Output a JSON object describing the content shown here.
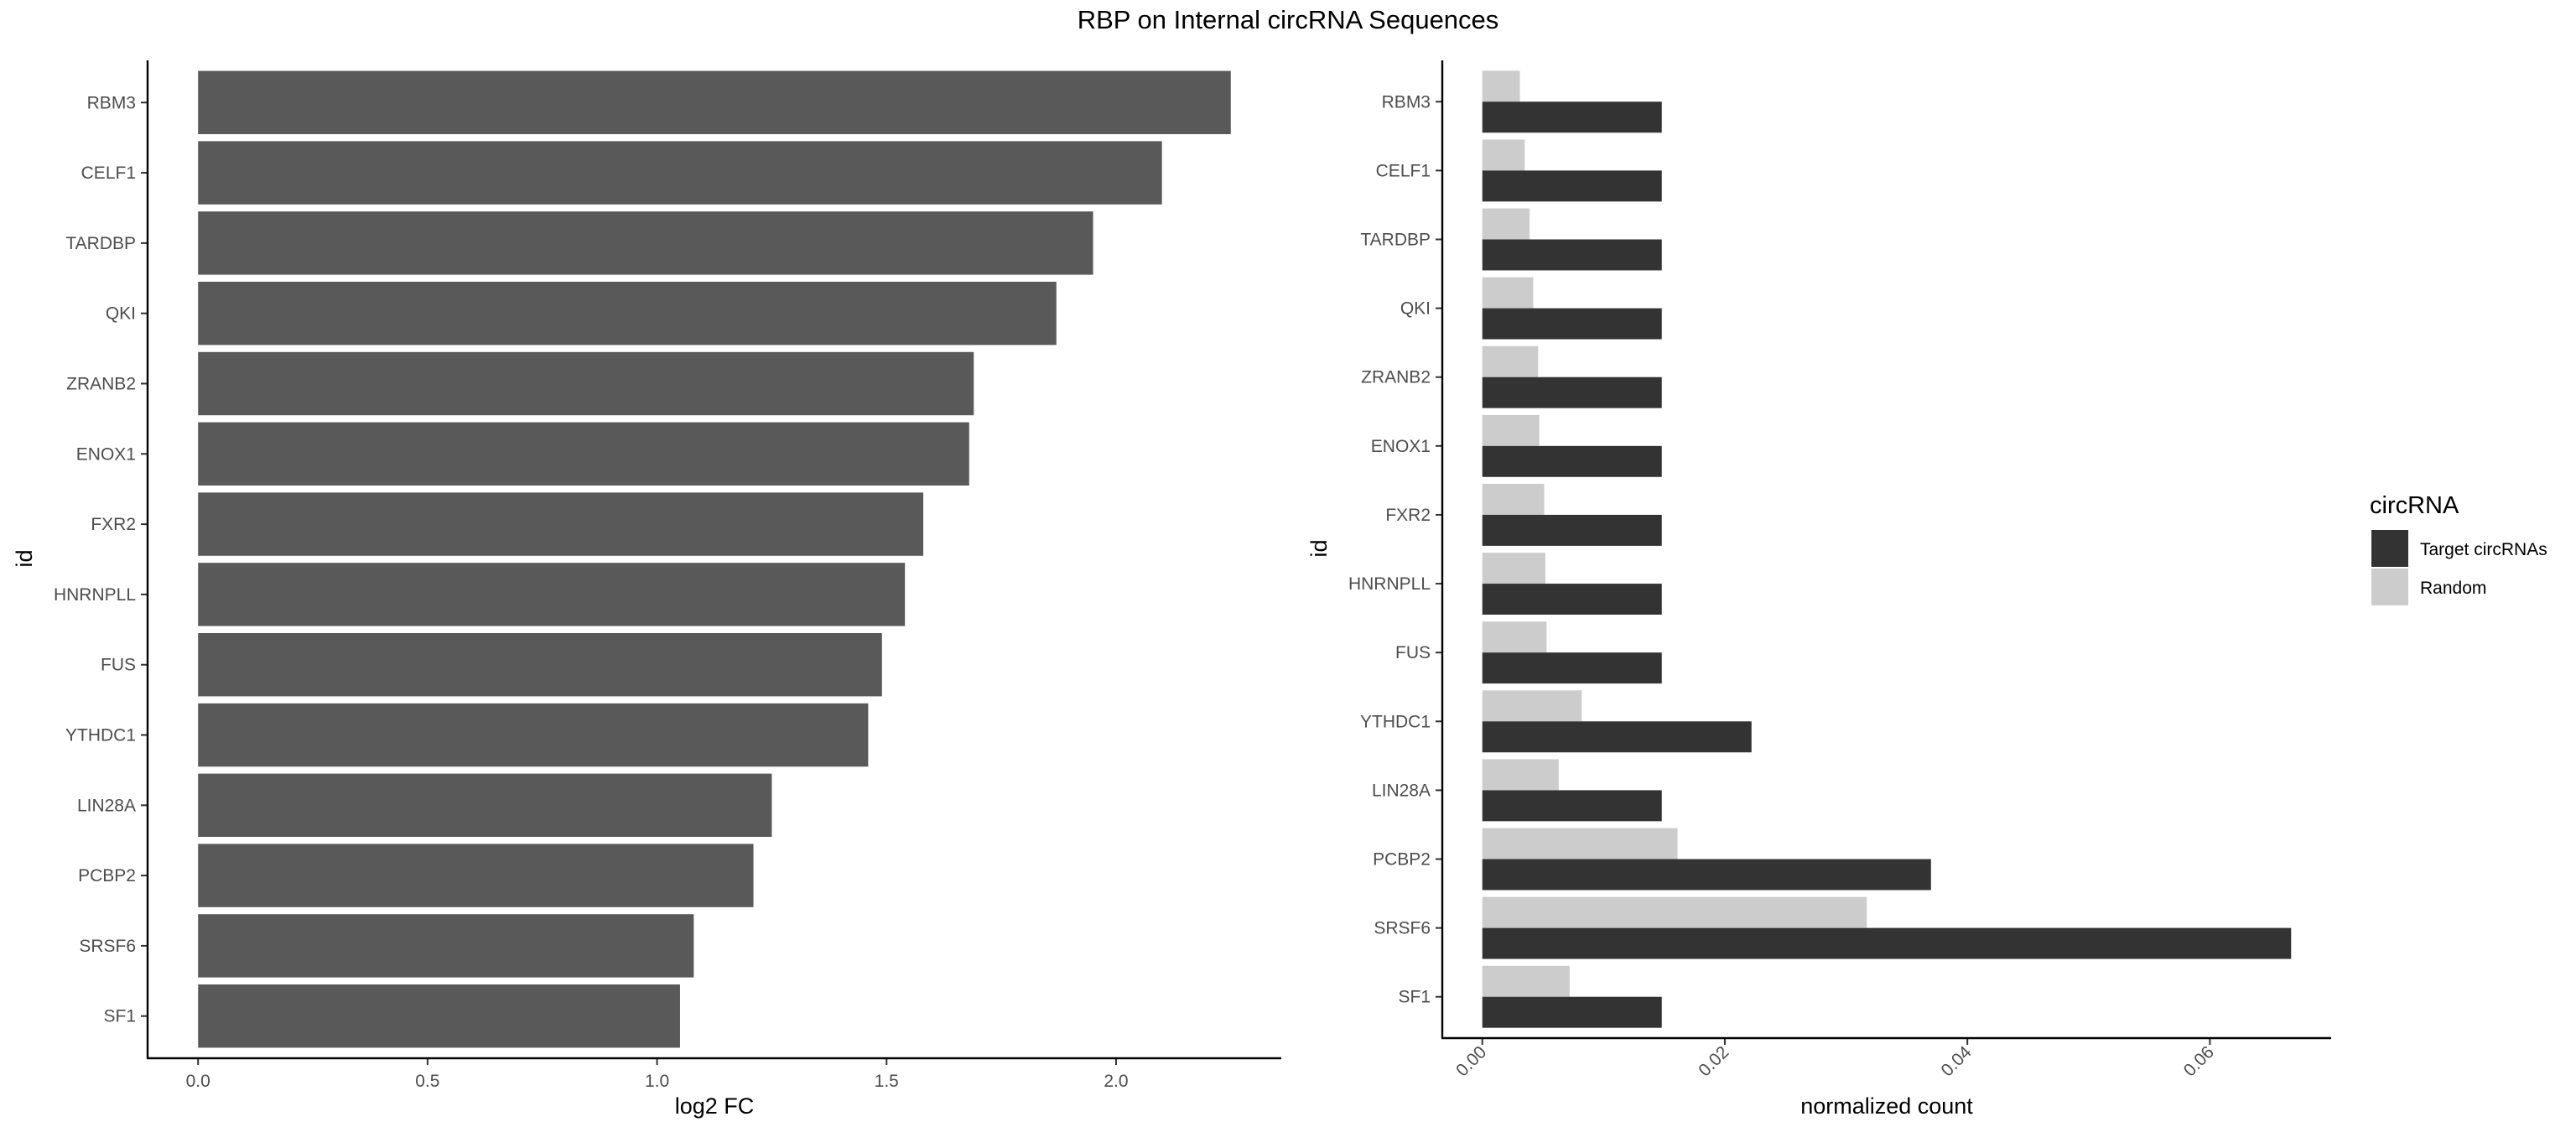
{
  "title": "RBP on Internal circRNA Sequences",
  "colors": {
    "bar_left": "#595959",
    "target": "#333333",
    "random": "#cccccc",
    "axis": "#000000",
    "tick_text": "#4d4d4d"
  },
  "chart_data": [
    {
      "type": "bar",
      "orientation": "horizontal",
      "categories": [
        "RBM3",
        "CELF1",
        "TARDBP",
        "QKI",
        "ZRANB2",
        "ENOX1",
        "FXR2",
        "HNRNPLL",
        "FUS",
        "YTHDC1",
        "LIN28A",
        "PCBP2",
        "SRSF6",
        "SF1"
      ],
      "values": [
        2.25,
        2.1,
        1.95,
        1.87,
        1.69,
        1.68,
        1.58,
        1.54,
        1.49,
        1.46,
        1.25,
        1.21,
        1.08,
        1.05
      ],
      "xlabel": "log2 FC",
      "ylabel": "id",
      "xlim": [
        -0.11,
        2.36
      ],
      "xticks": [
        "0.0",
        "0.5",
        "1.0",
        "1.5",
        "2.0"
      ],
      "grid": false
    },
    {
      "type": "bar",
      "orientation": "horizontal",
      "categories": [
        "RBM3",
        "CELF1",
        "TARDBP",
        "QKI",
        "ZRANB2",
        "ENOX1",
        "FXR2",
        "HNRNPLL",
        "FUS",
        "YTHDC1",
        "LIN28A",
        "PCBP2",
        "SRSF6",
        "SF1"
      ],
      "series": [
        {
          "name": "Target circRNAs",
          "values": [
            0.0148,
            0.0148,
            0.0148,
            0.0148,
            0.0148,
            0.0148,
            0.0148,
            0.0148,
            0.0148,
            0.0222,
            0.0148,
            0.037,
            0.0667,
            0.0148
          ]
        },
        {
          "name": "Random",
          "values": [
            0.0031,
            0.0035,
            0.0039,
            0.0042,
            0.0046,
            0.0047,
            0.0051,
            0.0052,
            0.0053,
            0.0082,
            0.0063,
            0.0161,
            0.0317,
            0.0072
          ]
        }
      ],
      "xlabel": "normalized count",
      "ylabel": "id",
      "xlim": [
        -0.0033,
        0.07
      ],
      "xticks": [
        "0.00",
        "0.02",
        "0.04",
        "0.06"
      ],
      "legend": {
        "title": "circRNA",
        "position": "right",
        "entries": [
          "Target circRNAs",
          "Random"
        ]
      },
      "grid": false
    }
  ]
}
